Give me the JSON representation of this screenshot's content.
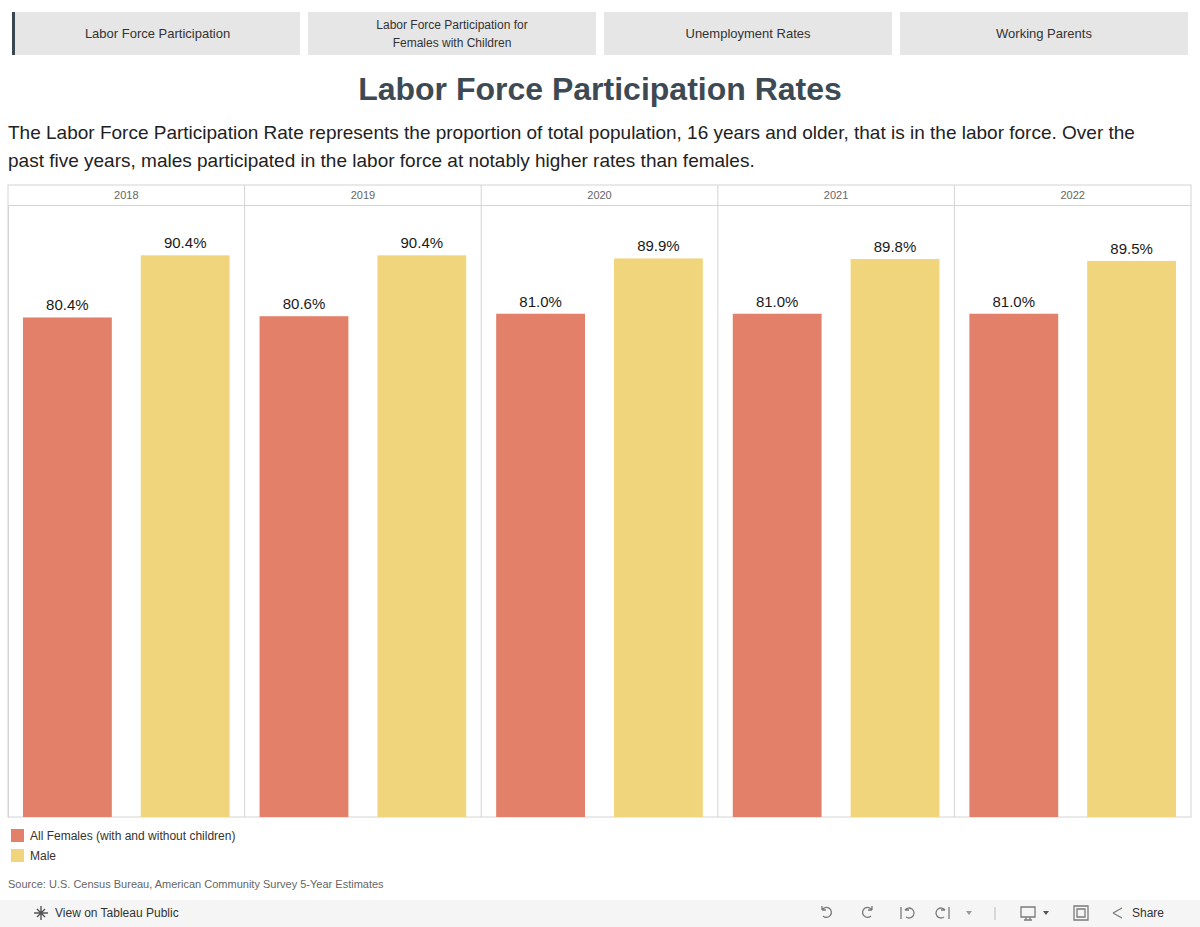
{
  "tabs": [
    "Labor Force Participation",
    "Labor Force Participation for Females with Children",
    "Unemployment Rates",
    "Working Parents"
  ],
  "chart_data": {
    "type": "bar",
    "title": "Labor Force Participation Rates",
    "subtitle": "The Labor Force Participation Rate represents the proportion of total population, 16 years and older, that is in the labor force. Over the past five years, males participated in the labor force at notably higher rates than females.",
    "categories": [
      "2018",
      "2019",
      "2020",
      "2021",
      "2022"
    ],
    "series": [
      {
        "name": "All Females (with and without children)",
        "color": "#e3806a",
        "values": [
          80.4,
          80.6,
          81.0,
          81.0,
          81.0
        ],
        "value_labels": [
          "80.4%",
          "80.6%",
          "81.0%",
          "81.0%",
          "81.0%"
        ]
      },
      {
        "name": "Male",
        "color": "#f0d57d",
        "values": [
          90.4,
          90.4,
          89.9,
          89.8,
          89.5
        ],
        "value_labels": [
          "90.4%",
          "90.4%",
          "89.9%",
          "89.8%",
          "89.5%"
        ]
      }
    ],
    "ylim": [
      0,
      98.5
    ],
    "tick_labels": "x",
    "data_labels": true,
    "legend": "bottom-left",
    "source": "Source: U.S. Census Bureau, American Community Survey 5-Year Estimates"
  },
  "footer": {
    "link": "View on Tableau Public",
    "share": "Share"
  }
}
